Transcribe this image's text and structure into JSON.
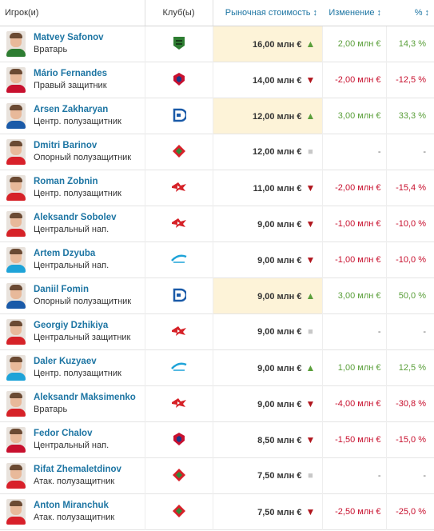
{
  "header": {
    "player": "Игрок(и)",
    "club": "Клуб(ы)",
    "value": "Рыночная стоимость",
    "change": "Изменение",
    "pct": "%",
    "sort_icon": "↕"
  },
  "club_colors": {
    "krasnodar": "#2e7d32",
    "cska": "#c8102e",
    "dynamo": "#1a5aa8",
    "lokomotiv": "#d8202a",
    "spartak": "#d62228",
    "zenit": "#1ea3d8"
  },
  "rows": [
    {
      "name": "Matvey Safonov",
      "position": "Вратарь",
      "club": "krasnodar",
      "club_icon": "krasnodar-crest-icon",
      "value": "16,00 млн €",
      "trend": "up",
      "trend_glyph": "▲",
      "change": "2,00 млн €",
      "pct": "14,3 %",
      "sign": "pos",
      "highlight": true
    },
    {
      "name": "Mário Fernandes",
      "position": "Правый защитник",
      "club": "cska",
      "club_icon": "cska-crest-icon",
      "value": "14,00 млн €",
      "trend": "down",
      "trend_glyph": "▼",
      "change": "-2,00 млн €",
      "pct": "-12,5 %",
      "sign": "neg",
      "highlight": false
    },
    {
      "name": "Arsen Zakharyan",
      "position": "Центр. полузащитник",
      "club": "dynamo",
      "club_icon": "dynamo-crest-icon",
      "value": "12,00 млн €",
      "trend": "up",
      "trend_glyph": "▲",
      "change": "3,00 млн €",
      "pct": "33,3 %",
      "sign": "pos",
      "highlight": true
    },
    {
      "name": "Dmitri Barinov",
      "position": "Опорный полузащитник",
      "club": "lokomotiv",
      "club_icon": "lokomotiv-crest-icon",
      "value": "12,00 млн €",
      "trend": "same",
      "trend_glyph": "■",
      "change": "-",
      "pct": "-",
      "sign": "neu",
      "highlight": false
    },
    {
      "name": "Roman Zobnin",
      "position": "Центр. полузащитник",
      "club": "spartak",
      "club_icon": "spartak-crest-icon",
      "value": "11,00 млн €",
      "trend": "down",
      "trend_glyph": "▼",
      "change": "-2,00 млн €",
      "pct": "-15,4 %",
      "sign": "neg",
      "highlight": false
    },
    {
      "name": "Aleksandr Sobolev",
      "position": "Центральный нап.",
      "club": "spartak",
      "club_icon": "spartak-crest-icon",
      "value": "9,00 млн €",
      "trend": "down",
      "trend_glyph": "▼",
      "change": "-1,00 млн €",
      "pct": "-10,0 %",
      "sign": "neg",
      "highlight": false
    },
    {
      "name": "Artem Dzyuba",
      "position": "Центральный нап.",
      "club": "zenit",
      "club_icon": "zenit-crest-icon",
      "value": "9,00 млн €",
      "trend": "down",
      "trend_glyph": "▼",
      "change": "-1,00 млн €",
      "pct": "-10,0 %",
      "sign": "neg",
      "highlight": false
    },
    {
      "name": "Daniil Fomin",
      "position": "Опорный полузащитник",
      "club": "dynamo",
      "club_icon": "dynamo-crest-icon",
      "value": "9,00 млн €",
      "trend": "up",
      "trend_glyph": "▲",
      "change": "3,00 млн €",
      "pct": "50,0 %",
      "sign": "pos",
      "highlight": true
    },
    {
      "name": "Georgiy Dzhikiya",
      "position": "Центральный защитник",
      "club": "spartak",
      "club_icon": "spartak-crest-icon",
      "value": "9,00 млн €",
      "trend": "same",
      "trend_glyph": "■",
      "change": "-",
      "pct": "-",
      "sign": "neu",
      "highlight": false
    },
    {
      "name": "Daler Kuzyaev",
      "position": "Центр. полузащитник",
      "club": "zenit",
      "club_icon": "zenit-crest-icon",
      "value": "9,00 млн €",
      "trend": "up",
      "trend_glyph": "▲",
      "change": "1,00 млн €",
      "pct": "12,5 %",
      "sign": "pos",
      "highlight": false
    },
    {
      "name": "Aleksandr Maksimenko",
      "position": "Вратарь",
      "club": "spartak",
      "club_icon": "spartak-crest-icon",
      "value": "9,00 млн €",
      "trend": "down",
      "trend_glyph": "▼",
      "change": "-4,00 млн €",
      "pct": "-30,8 %",
      "sign": "neg",
      "highlight": false
    },
    {
      "name": "Fedor Chalov",
      "position": "Центральный нап.",
      "club": "cska",
      "club_icon": "cska-crest-icon",
      "value": "8,50 млн €",
      "trend": "down",
      "trend_glyph": "▼",
      "change": "-1,50 млн €",
      "pct": "-15,0 %",
      "sign": "neg",
      "highlight": false
    },
    {
      "name": "Rifat Zhemaletdinov",
      "position": "Атак. полузащитник",
      "club": "lokomotiv",
      "club_icon": "lokomotiv-crest-icon",
      "value": "7,50 млн €",
      "trend": "same",
      "trend_glyph": "■",
      "change": "-",
      "pct": "-",
      "sign": "neu",
      "highlight": false
    },
    {
      "name": "Anton Miranchuk",
      "position": "Атак. полузащитник",
      "club": "lokomotiv",
      "club_icon": "lokomotiv-crest-icon",
      "value": "7,50 млн €",
      "trend": "down",
      "trend_glyph": "▼",
      "change": "-2,50 млн €",
      "pct": "-25,0 %",
      "sign": "neg",
      "highlight": false
    }
  ]
}
